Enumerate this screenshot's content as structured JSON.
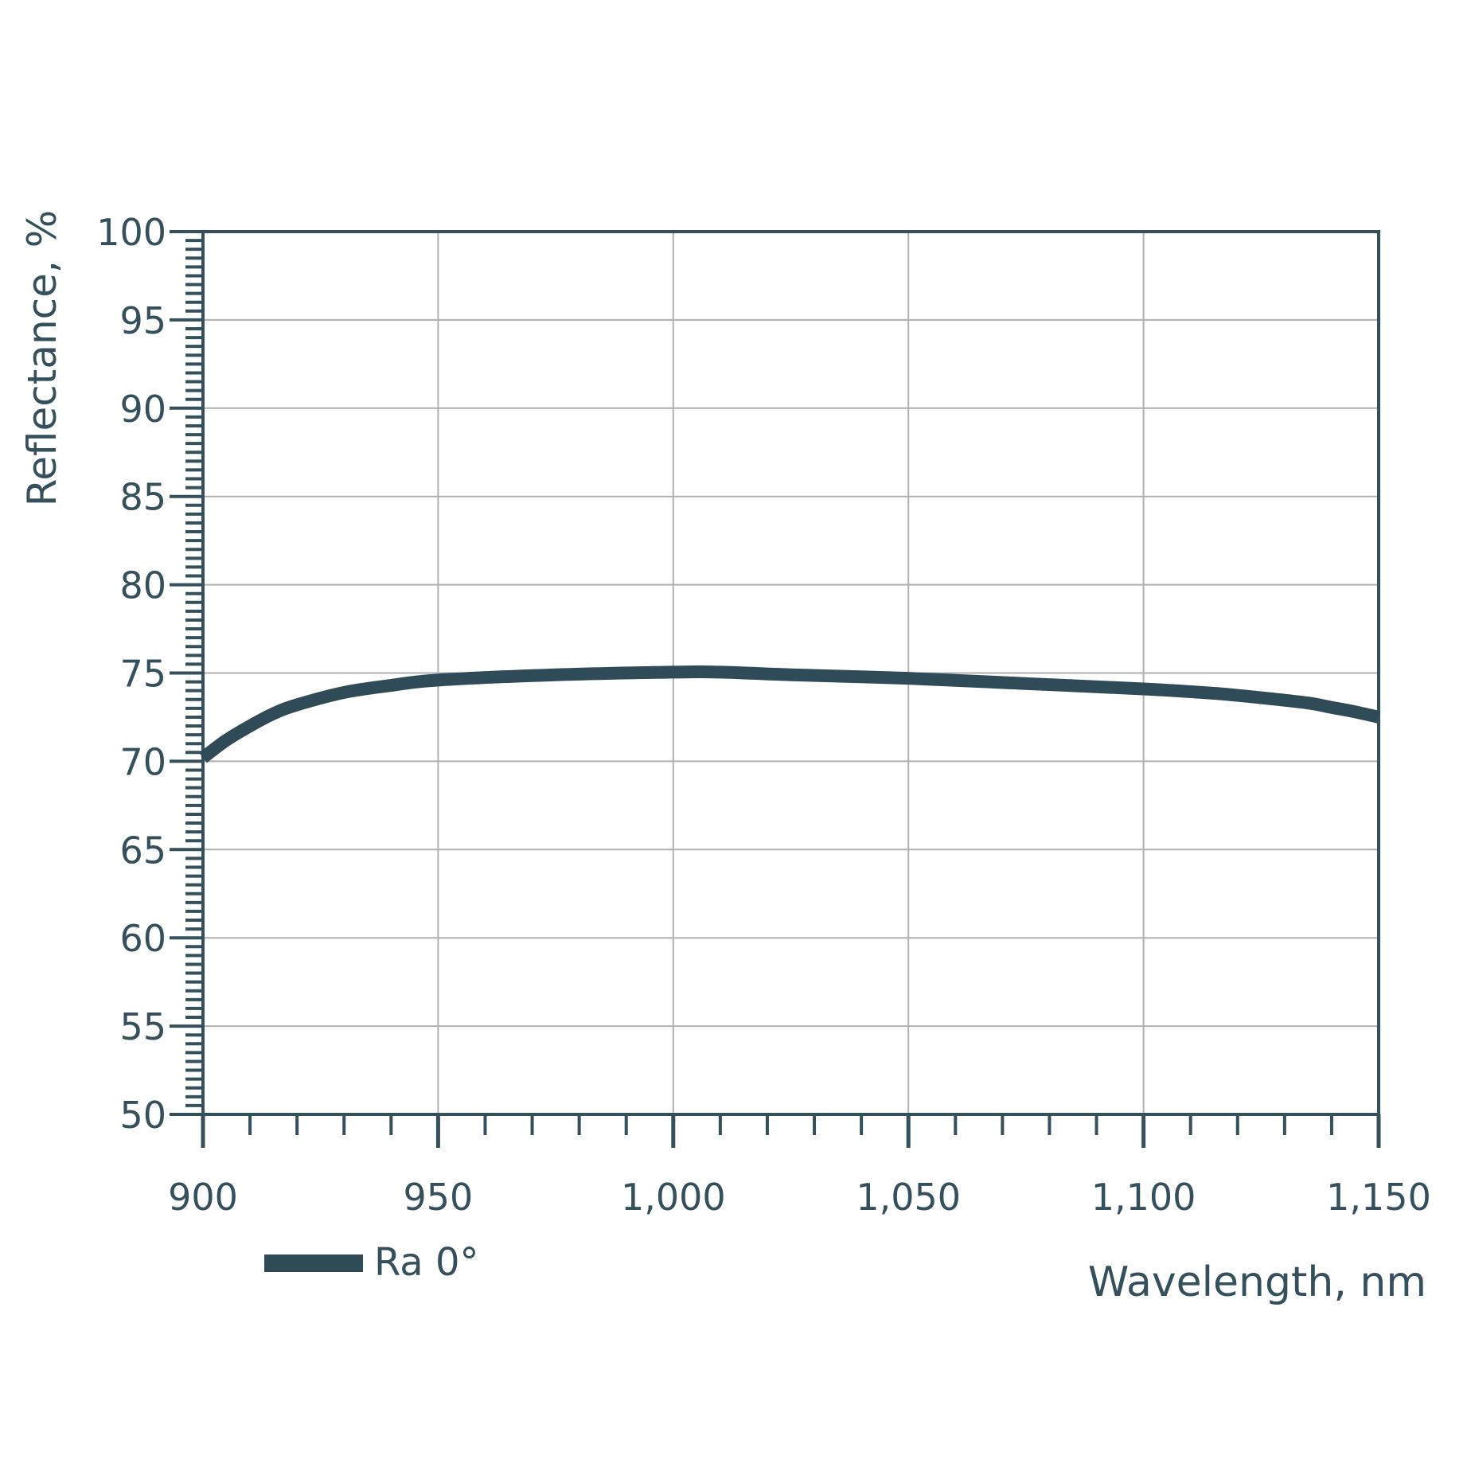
{
  "chart_data": {
    "type": "line",
    "title": "",
    "xlabel": "Wavelength, nm",
    "ylabel": "Reflectance, %",
    "xlim": [
      900,
      1150
    ],
    "ylim": [
      50,
      100
    ],
    "x_ticks": [
      900,
      950,
      1000,
      1050,
      1100,
      1150
    ],
    "x_tick_labels": [
      "900",
      "950",
      "1,000",
      "1,050",
      "1,100",
      "1,150"
    ],
    "y_ticks": [
      50,
      55,
      60,
      65,
      70,
      75,
      80,
      85,
      90,
      95,
      100
    ],
    "y_tick_labels": [
      "50",
      "55",
      "60",
      "65",
      "70",
      "75",
      "80",
      "85",
      "90",
      "95",
      "100"
    ],
    "grid": true,
    "legend_position": "bottom-left",
    "series": [
      {
        "name": "Ra 0°",
        "color": "#2f4b57",
        "x": [
          900,
          905,
          910,
          915,
          920,
          930,
          940,
          950,
          975,
          1000,
          1010,
          1025,
          1050,
          1075,
          1100,
          1115,
          1125,
          1135,
          1140,
          1145,
          1150
        ],
        "y": [
          70.2,
          71.2,
          72.0,
          72.7,
          73.2,
          73.9,
          74.3,
          74.6,
          74.9,
          75.05,
          75.05,
          74.9,
          74.7,
          74.4,
          74.1,
          73.85,
          73.6,
          73.3,
          73.05,
          72.8,
          72.5
        ]
      }
    ]
  }
}
